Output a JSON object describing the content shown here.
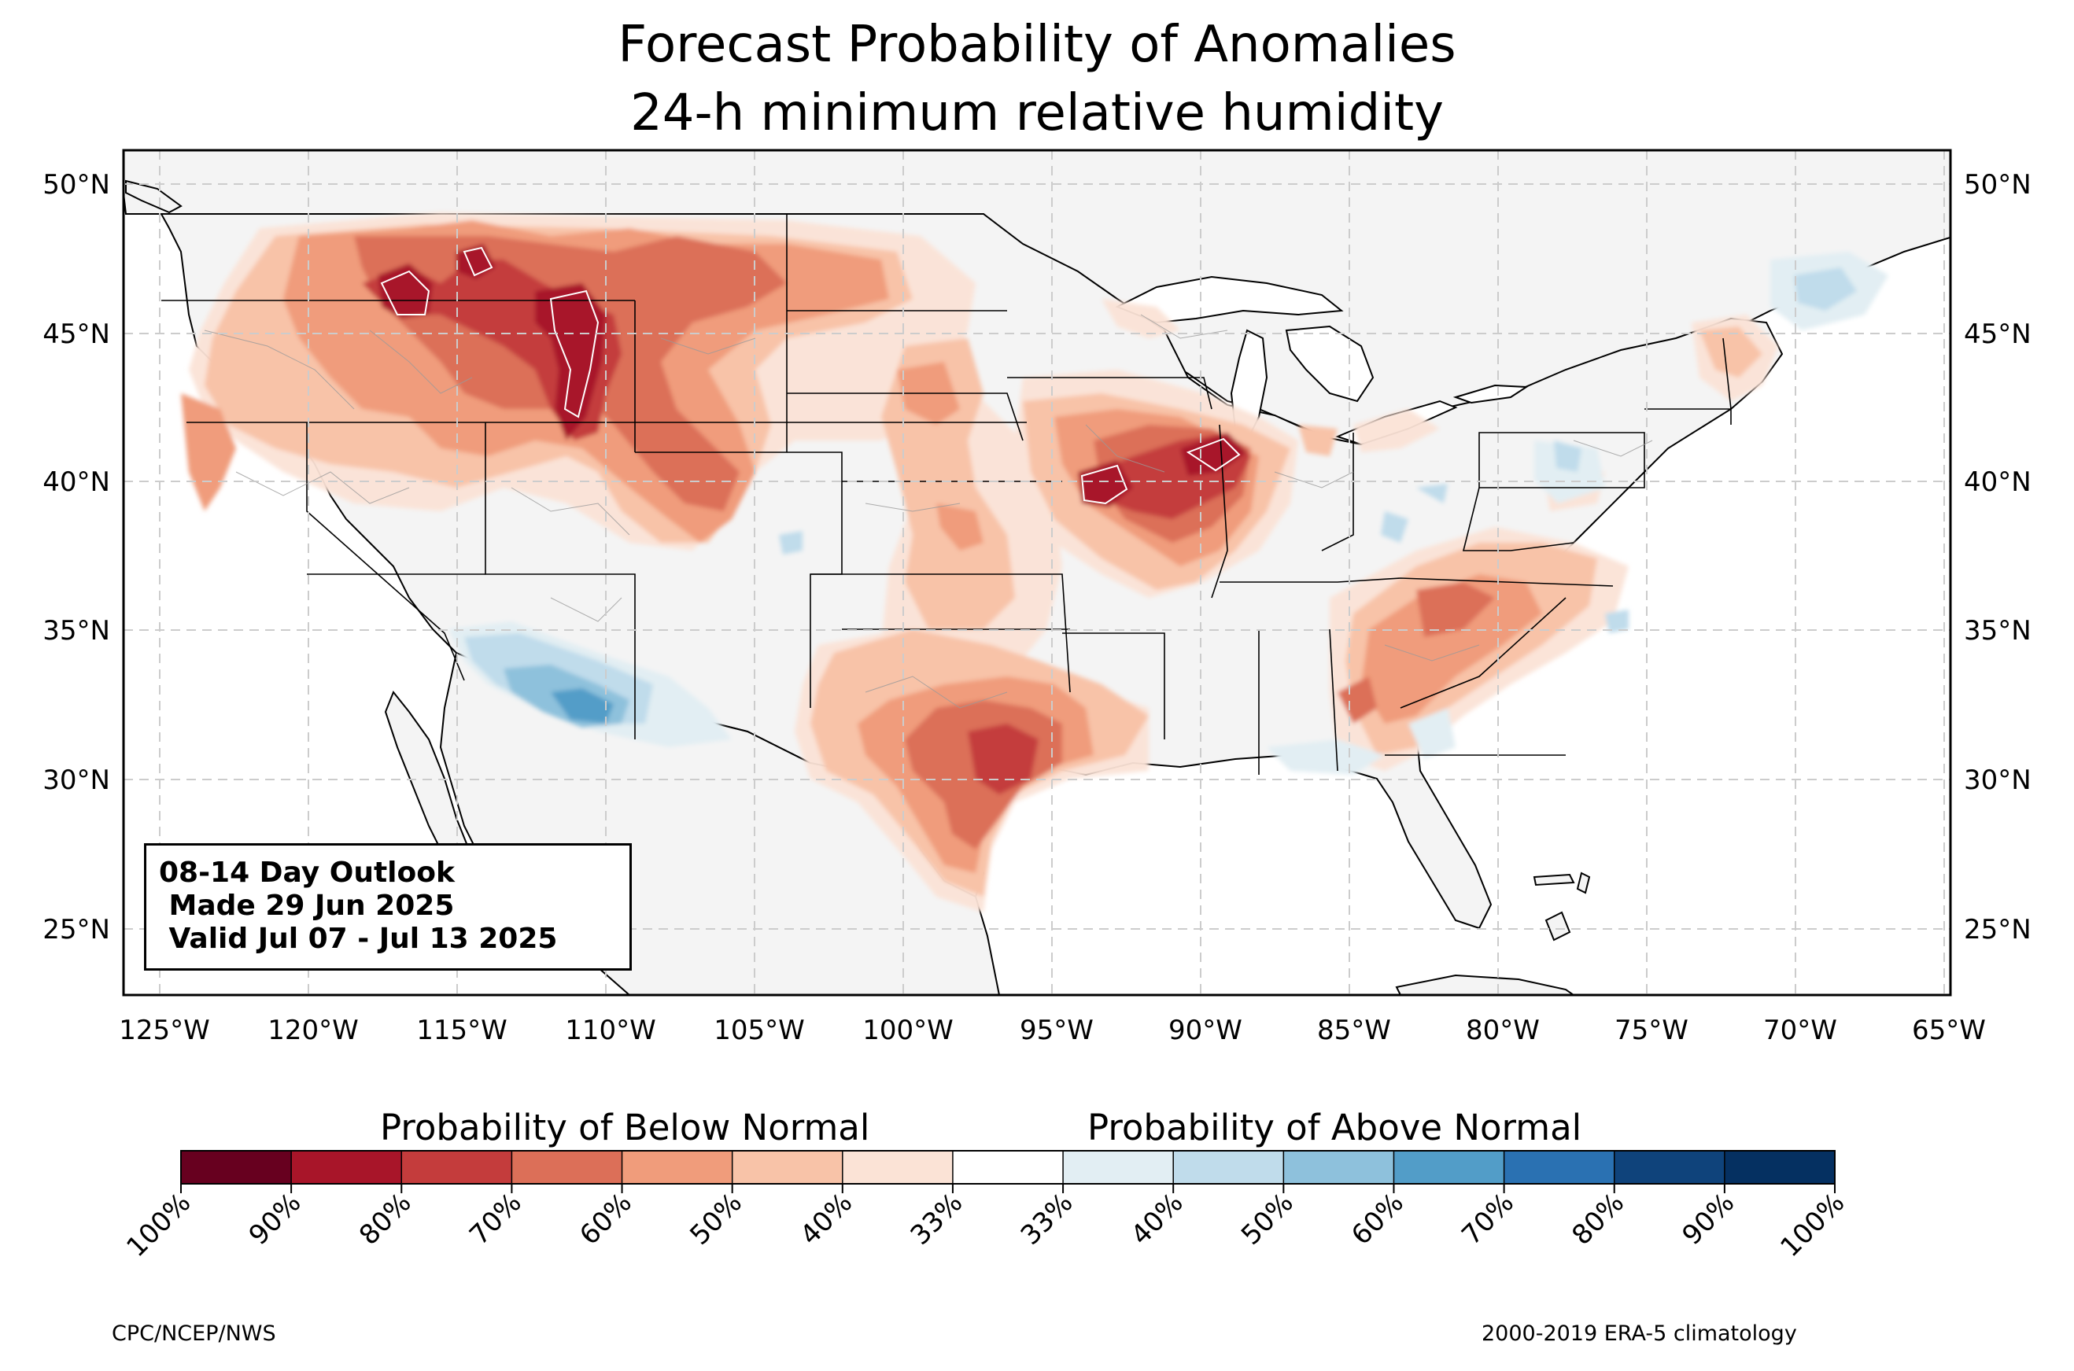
{
  "title": {
    "line1": "Forecast Probability of Anomalies",
    "line2": "24-h minimum relative humidity"
  },
  "map": {
    "type": "contour probability map",
    "region": "CONUS",
    "lon_range": [
      -126.3,
      -64.9
    ],
    "lat_range": [
      22.7,
      51.2
    ],
    "gridlines": "dashed, every 5 degrees",
    "lat_ticks": [
      "25°N",
      "30°N",
      "35°N",
      "40°N",
      "45°N",
      "50°N"
    ],
    "lon_ticks": [
      "125°W",
      "120°W",
      "115°W",
      "110°W",
      "105°W",
      "100°W",
      "95°W",
      "90°W",
      "85°W",
      "80°W",
      "75°W",
      "70°W",
      "65°W"
    ],
    "land_color": "#f4f4f4",
    "features": {
      "below_normal": [
        {
          "name": "Idaho / Montana maximum",
          "lon": -116.5,
          "lat": 46.3,
          "prob": "80-90%"
        },
        {
          "name": "Wyoming maximum",
          "lon": -110.8,
          "lat": 43.2,
          "prob": "80-90%"
        },
        {
          "name": "Missouri / Illinois maximum",
          "lon": -92.5,
          "lat": 40.0,
          "prob": "70-80%"
        },
        {
          "name": "Texas maximum",
          "lon": -97.0,
          "lat": 31.0,
          "prob": "60-70%"
        },
        {
          "name": "Northern Rockies / Plains",
          "prob": "40-70%"
        },
        {
          "name": "Southern Plains / Texas",
          "prob": "40-70%"
        },
        {
          "name": "Carolinas / Mid-Atlantic",
          "prob": "40-60%"
        }
      ],
      "above_normal": [
        {
          "name": "Southern Arizona",
          "lon": -111.5,
          "lat": 32.2,
          "prob": "50-60%"
        },
        {
          "name": "Northern New York / New England",
          "prob": "40-50%"
        },
        {
          "name": "Pennsylvania / Ohio Valley spots",
          "prob": "40-50%"
        }
      ]
    }
  },
  "info_box": {
    "line1": "08-14 Day Outlook",
    "line2": " Made 29 Jun 2025",
    "line3": " Valid Jul 07 - Jul 13 2025"
  },
  "colorbar": {
    "below_title": "Probability of Below Normal",
    "above_title": "Probability of Above Normal",
    "labels": [
      "100%",
      "90%",
      "80%",
      "70%",
      "60%",
      "50%",
      "40%",
      "33%",
      "33%",
      "40%",
      "50%",
      "60%",
      "70%",
      "80%",
      "90%",
      "100%"
    ],
    "colors": [
      "#67001f",
      "#a81529",
      "#c43c3c",
      "#dc6f58",
      "#f09c7b",
      "#f8c3a8",
      "#fbe3d6",
      "#ffffff",
      "#e2eef3",
      "#c0dceb",
      "#8ec1dc",
      "#529dc8",
      "#2a71b2",
      "#0f437b",
      "#053061"
    ]
  },
  "credits": {
    "left": "CPC/NCEP/NWS",
    "right": "2000-2019 ERA-5 climatology"
  }
}
